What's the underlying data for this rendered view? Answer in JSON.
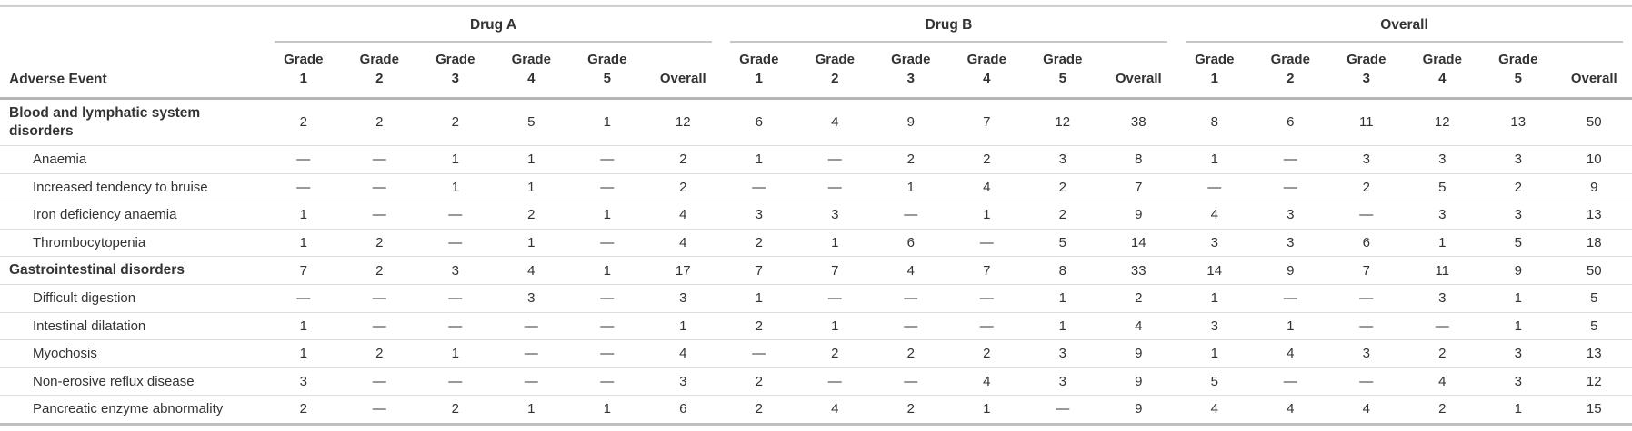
{
  "colors": {
    "text": "#333333",
    "heavy_rule": "#b5b5b5",
    "light_rule": "#dddddd"
  },
  "chart_data": {
    "type": "table",
    "row_header": "Adverse Event",
    "column_groups": [
      "Drug A",
      "Drug B",
      "Overall"
    ],
    "columns_per_group": [
      "Grade\n1",
      "Grade\n2",
      "Grade\n3",
      "Grade\n4",
      "Grade\n5",
      "Overall"
    ],
    "rows": [
      {
        "label": "Blood and lymphatic system disorders",
        "section": true,
        "drug_a": [
          2,
          2,
          2,
          5,
          1,
          12
        ],
        "drug_b": [
          6,
          4,
          9,
          7,
          12,
          38
        ],
        "overall": [
          8,
          6,
          11,
          12,
          13,
          50
        ]
      },
      {
        "label": "Anaemia",
        "section": false,
        "drug_a": [
          "—",
          "—",
          1,
          1,
          "—",
          2
        ],
        "drug_b": [
          1,
          "—",
          2,
          2,
          3,
          8
        ],
        "overall": [
          1,
          "—",
          3,
          3,
          3,
          10
        ]
      },
      {
        "label": "Increased tendency to bruise",
        "section": false,
        "drug_a": [
          "—",
          "—",
          1,
          1,
          "—",
          2
        ],
        "drug_b": [
          "—",
          "—",
          1,
          4,
          2,
          7
        ],
        "overall": [
          "—",
          "—",
          2,
          5,
          2,
          9
        ]
      },
      {
        "label": "Iron deficiency anaemia",
        "section": false,
        "drug_a": [
          1,
          "—",
          "—",
          2,
          1,
          4
        ],
        "drug_b": [
          3,
          3,
          "—",
          1,
          2,
          9
        ],
        "overall": [
          4,
          3,
          "—",
          3,
          3,
          13
        ]
      },
      {
        "label": "Thrombocytopenia",
        "section": false,
        "drug_a": [
          1,
          2,
          "—",
          1,
          "—",
          4
        ],
        "drug_b": [
          2,
          1,
          6,
          "—",
          5,
          14
        ],
        "overall": [
          3,
          3,
          6,
          1,
          5,
          18
        ]
      },
      {
        "label": "Gastrointestinal disorders",
        "section": true,
        "drug_a": [
          7,
          2,
          3,
          4,
          1,
          17
        ],
        "drug_b": [
          7,
          7,
          4,
          7,
          8,
          33
        ],
        "overall": [
          14,
          9,
          7,
          11,
          9,
          50
        ]
      },
      {
        "label": "Difficult digestion",
        "section": false,
        "drug_a": [
          "—",
          "—",
          "—",
          3,
          "—",
          3
        ],
        "drug_b": [
          1,
          "—",
          "—",
          "—",
          1,
          2
        ],
        "overall": [
          1,
          "—",
          "—",
          3,
          1,
          5
        ]
      },
      {
        "label": "Intestinal dilatation",
        "section": false,
        "drug_a": [
          1,
          "—",
          "—",
          "—",
          "—",
          1
        ],
        "drug_b": [
          2,
          1,
          "—",
          "—",
          1,
          4
        ],
        "overall": [
          3,
          1,
          "—",
          "—",
          1,
          5
        ]
      },
      {
        "label": "Myochosis",
        "section": false,
        "drug_a": [
          1,
          2,
          1,
          "—",
          "—",
          4
        ],
        "drug_b": [
          "—",
          2,
          2,
          2,
          3,
          9
        ],
        "overall": [
          1,
          4,
          3,
          2,
          3,
          13
        ]
      },
      {
        "label": "Non-erosive reflux disease",
        "section": false,
        "drug_a": [
          3,
          "—",
          "—",
          "—",
          "—",
          3
        ],
        "drug_b": [
          2,
          "—",
          "—",
          4,
          3,
          9
        ],
        "overall": [
          5,
          "—",
          "—",
          4,
          3,
          12
        ]
      },
      {
        "label": "Pancreatic enzyme abnormality",
        "section": false,
        "drug_a": [
          2,
          "—",
          2,
          1,
          1,
          6
        ],
        "drug_b": [
          2,
          4,
          2,
          1,
          "—",
          9
        ],
        "overall": [
          4,
          4,
          4,
          2,
          1,
          15
        ]
      }
    ]
  }
}
